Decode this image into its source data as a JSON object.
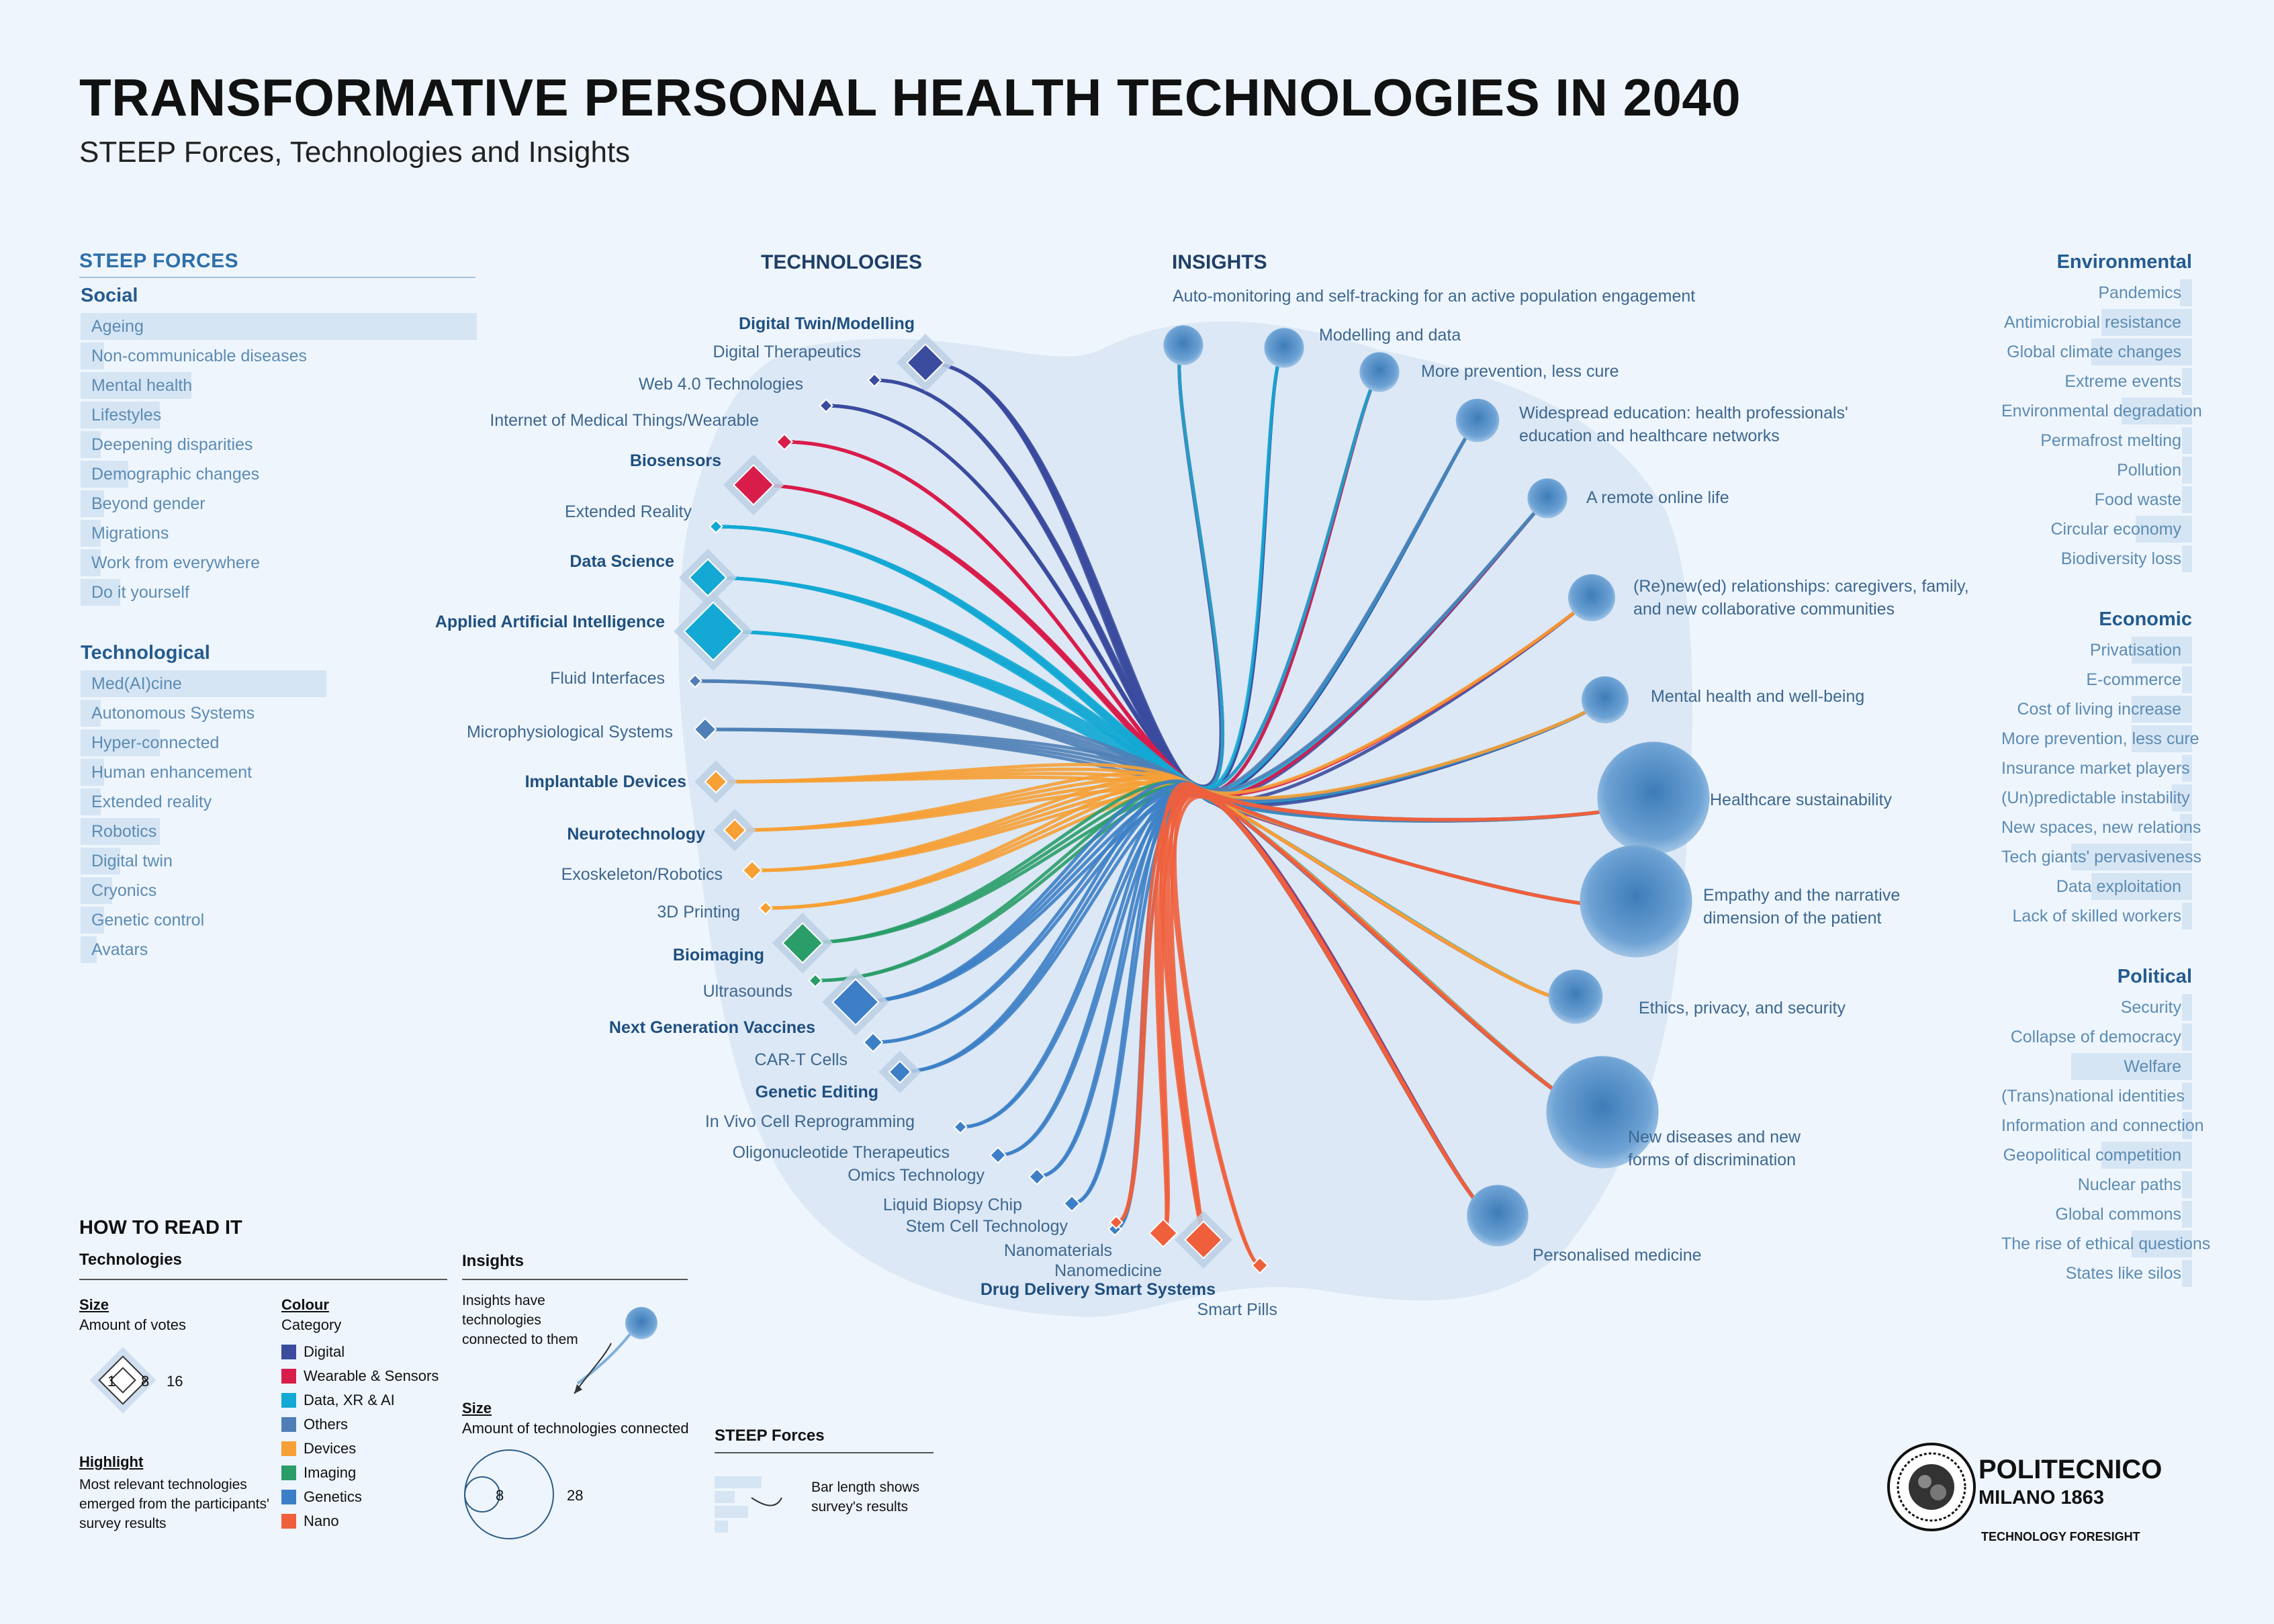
{
  "title": "TRANSFORMATIVE PERSONAL HEALTH TECHNOLOGIES IN 2040",
  "subtitle": "STEEP Forces, Technologies and Insights",
  "headers": {
    "steep": "STEEP FORCES",
    "technologies": "TECHNOLOGIES",
    "insights": "INSIGHTS"
  },
  "colors": {
    "Digital": "#3b4b9e",
    "Wearable": "#d81d4b",
    "Data": "#14a9d4",
    "Others": "#4f7fb6",
    "Devices": "#f6a035",
    "Imaging": "#2a9d69",
    "Genetics": "#3d7fc6",
    "Nano": "#ef5f3c",
    "background": "#eef5fc",
    "blob": "#dde9f6"
  },
  "steep_left": [
    {
      "name": "Social",
      "items": [
        {
          "label": "Ageing",
          "value": 1.0
        },
        {
          "label": "Non-communicable diseases",
          "value": 0.06
        },
        {
          "label": "Mental health",
          "value": 0.28
        },
        {
          "label": "Lifestyles",
          "value": 0.2
        },
        {
          "label": "Deepening disparities",
          "value": 0.05
        },
        {
          "label": "Demographic changes",
          "value": 0.12
        },
        {
          "label": "Beyond gender",
          "value": 0.06
        },
        {
          "label": "Migrations",
          "value": 0.05
        },
        {
          "label": "Work from everywhere",
          "value": 0.05
        },
        {
          "label": "Do it yourself",
          "value": 0.1
        }
      ]
    },
    {
      "name": "Technological",
      "items": [
        {
          "label": "Med(AI)cine",
          "value": 0.62
        },
        {
          "label": "Autonomous Systems",
          "value": 0.05
        },
        {
          "label": "Hyper-connected",
          "value": 0.2
        },
        {
          "label": "Human enhancement",
          "value": 0.06
        },
        {
          "label": "Extended reality",
          "value": 0.05
        },
        {
          "label": "Robotics",
          "value": 0.2
        },
        {
          "label": "Digital twin",
          "value": 0.1
        },
        {
          "label": "Cryonics",
          "value": 0.08
        },
        {
          "label": "Genetic control",
          "value": 0.06
        },
        {
          "label": "Avatars",
          "value": 0.04
        }
      ]
    }
  ],
  "steep_right": [
    {
      "name": "Environmental",
      "items": [
        {
          "label": "Pandemics",
          "value": 0.06
        },
        {
          "label": "Antimicrobial resistance",
          "value": 0.45
        },
        {
          "label": "Global climate changes",
          "value": 0.5
        },
        {
          "label": "Extreme events",
          "value": 0.05
        },
        {
          "label": "Environmental degradation",
          "value": 0.35
        },
        {
          "label": "Permafrost melting",
          "value": 0.05
        },
        {
          "label": "Pollution",
          "value": 0.05
        },
        {
          "label": "Food waste",
          "value": 0.05
        },
        {
          "label": "Circular economy",
          "value": 0.28
        },
        {
          "label": "Biodiversity loss",
          "value": 0.05
        }
      ]
    },
    {
      "name": "Economic",
      "items": [
        {
          "label": "Privatisation",
          "value": 0.3
        },
        {
          "label": "E-commerce",
          "value": 0.05
        },
        {
          "label": "Cost of living increase",
          "value": 0.3
        },
        {
          "label": "More prevention, less cure",
          "value": 0.3
        },
        {
          "label": "Insurance market players",
          "value": 0.05
        },
        {
          "label": "(Un)predictable instability",
          "value": 0.1
        },
        {
          "label": "New spaces, new relations",
          "value": 0.06
        },
        {
          "label": "Tech giants' pervasiveness",
          "value": 0.6
        },
        {
          "label": "Data exploitation",
          "value": 0.5
        },
        {
          "label": "Lack of skilled workers",
          "value": 0.05
        }
      ]
    },
    {
      "name": "Political",
      "items": [
        {
          "label": "Security",
          "value": 0.05
        },
        {
          "label": "Collapse of democracy",
          "value": 0.05
        },
        {
          "label": "Welfare",
          "value": 0.6
        },
        {
          "label": "(Trans)national identities",
          "value": 0.05
        },
        {
          "label": "Information and connection",
          "value": 0.05
        },
        {
          "label": "Geopolitical competition",
          "value": 0.45
        },
        {
          "label": "Nuclear paths",
          "value": 0.05
        },
        {
          "label": "Global commons",
          "value": 0.05
        },
        {
          "label": "The rise of ethical questions",
          "value": 0.3
        },
        {
          "label": "States like silos",
          "value": 0.05
        }
      ]
    }
  ],
  "technologies": [
    {
      "name": "Digital Twin/Modelling",
      "cat": "Digital",
      "votes": 9,
      "highlight": true
    },
    {
      "name": "Digital Therapeutics",
      "cat": "Digital",
      "votes": 1,
      "highlight": false
    },
    {
      "name": "Web 4.0 Technologies",
      "cat": "Digital",
      "votes": 1,
      "highlight": false
    },
    {
      "name": "Internet of Medical Things/Wearable",
      "cat": "Wearable",
      "votes": 2,
      "highlight": false
    },
    {
      "name": "Biosensors",
      "cat": "Wearable",
      "votes": 10,
      "highlight": true
    },
    {
      "name": "Extended Reality",
      "cat": "Data",
      "votes": 1,
      "highlight": false
    },
    {
      "name": "Data Science",
      "cat": "Data",
      "votes": 9,
      "highlight": true
    },
    {
      "name": "Applied Artificial Intelligence",
      "cat": "Data",
      "votes": 16,
      "highlight": true
    },
    {
      "name": "Fluid Interfaces",
      "cat": "Others",
      "votes": 1,
      "highlight": false
    },
    {
      "name": "Microphysiological Systems",
      "cat": "Others",
      "votes": 4,
      "highlight": false
    },
    {
      "name": "Implantable Devices",
      "cat": "Devices",
      "votes": 4,
      "highlight": true
    },
    {
      "name": "Neurotechnology",
      "cat": "Devices",
      "votes": 4,
      "highlight": true
    },
    {
      "name": "Exoskeleton/Robotics",
      "cat": "Devices",
      "votes": 3,
      "highlight": false
    },
    {
      "name": "3D Printing",
      "cat": "Devices",
      "votes": 1,
      "highlight": false
    },
    {
      "name": "Bioimaging",
      "cat": "Imaging",
      "votes": 10,
      "highlight": true
    },
    {
      "name": "Ultrasounds",
      "cat": "Imaging",
      "votes": 1,
      "highlight": false
    },
    {
      "name": "Next Generation Vaccines",
      "cat": "Genetics",
      "votes": 12,
      "highlight": true
    },
    {
      "name": "CAR-T Cells",
      "cat": "Genetics",
      "votes": 3,
      "highlight": false
    },
    {
      "name": "Genetic Editing",
      "cat": "Genetics",
      "votes": 4,
      "highlight": true
    },
    {
      "name": "In Vivo Cell Reprogramming",
      "cat": "Genetics",
      "votes": 1,
      "highlight": false
    },
    {
      "name": "Oligonucleotide Therapeutics",
      "cat": "Genetics",
      "votes": 2,
      "highlight": false
    },
    {
      "name": "Omics Technology",
      "cat": "Genetics",
      "votes": 2,
      "highlight": false
    },
    {
      "name": "Liquid Biopsy Chip",
      "cat": "Genetics",
      "votes": 2,
      "highlight": false
    },
    {
      "name": "Stem Cell Technology",
      "cat": "Genetics",
      "votes": 1,
      "highlight": false
    },
    {
      "name": "Nanomaterials",
      "cat": "Nano",
      "votes": 1,
      "highlight": false
    },
    {
      "name": "Nanomedicine",
      "cat": "Nano",
      "votes": 6,
      "highlight": false
    },
    {
      "name": "Drug Delivery Smart Systems",
      "cat": "Nano",
      "votes": 9,
      "highlight": true
    },
    {
      "name": "Smart Pills",
      "cat": "Nano",
      "votes": 2,
      "highlight": false
    }
  ],
  "insights": [
    {
      "label": "Auto-monitoring and self-tracking for an active population engagement",
      "connected": 8
    },
    {
      "label": "Modelling and data",
      "connected": 8
    },
    {
      "label": "More prevention, less cure",
      "connected": 8
    },
    {
      "label": "Widespread education: health professionals' education and healthcare networks",
      "connected": 9
    },
    {
      "label": "A remote online life",
      "connected": 8
    },
    {
      "label": "(Re)new(ed) relationships: caregivers, family, and new collaborative communities",
      "connected": 10
    },
    {
      "label": "Mental health and well-being",
      "connected": 10
    },
    {
      "label": "Healthcare sustainability",
      "connected": 28
    },
    {
      "label": "Empathy and the narrative dimension of the patient",
      "connected": 28
    },
    {
      "label": "Ethics, privacy, and security",
      "connected": 12
    },
    {
      "label": "New diseases and new forms of discrimination",
      "connected": 28
    },
    {
      "label": "Personalised medicine",
      "connected": 14
    }
  ],
  "legend": {
    "how_to_read": "HOW TO READ IT",
    "technologies_head": "Technologies",
    "size_head": "Size",
    "size_desc": "Amount of votes",
    "size_ticks": [
      "1",
      "8",
      "16"
    ],
    "highlight_head": "Highlight",
    "highlight_desc": "Most relevant technologies emerged from the participants' survey results",
    "colour_head": "Colour",
    "colour_sub": "Category",
    "categories": [
      {
        "label": "Digital",
        "color": "#3b4b9e"
      },
      {
        "label": "Wearable & Sensors",
        "color": "#d81d4b"
      },
      {
        "label": "Data, XR & AI",
        "color": "#14a9d4"
      },
      {
        "label": "Others",
        "color": "#4f7fb6"
      },
      {
        "label": "Devices",
        "color": "#f6a035"
      },
      {
        "label": "Imaging",
        "color": "#2a9d69"
      },
      {
        "label": "Genetics",
        "color": "#3d7fc6"
      },
      {
        "label": "Nano",
        "color": "#ef5f3c"
      }
    ],
    "insights_head": "Insights",
    "insights_desc": "Insights have technologies connected to them",
    "insights_size_head": "Size",
    "insights_size_desc": "Amount of technologies connected",
    "insights_size_ticks": [
      "8",
      "28"
    ],
    "steep_head": "STEEP Forces",
    "steep_desc": "Bar length shows survey's results"
  },
  "logo": {
    "name": "POLITECNICO",
    "sub": "MILANO 1863",
    "tagline": "TECHNOLOGY FORESIGHT"
  }
}
